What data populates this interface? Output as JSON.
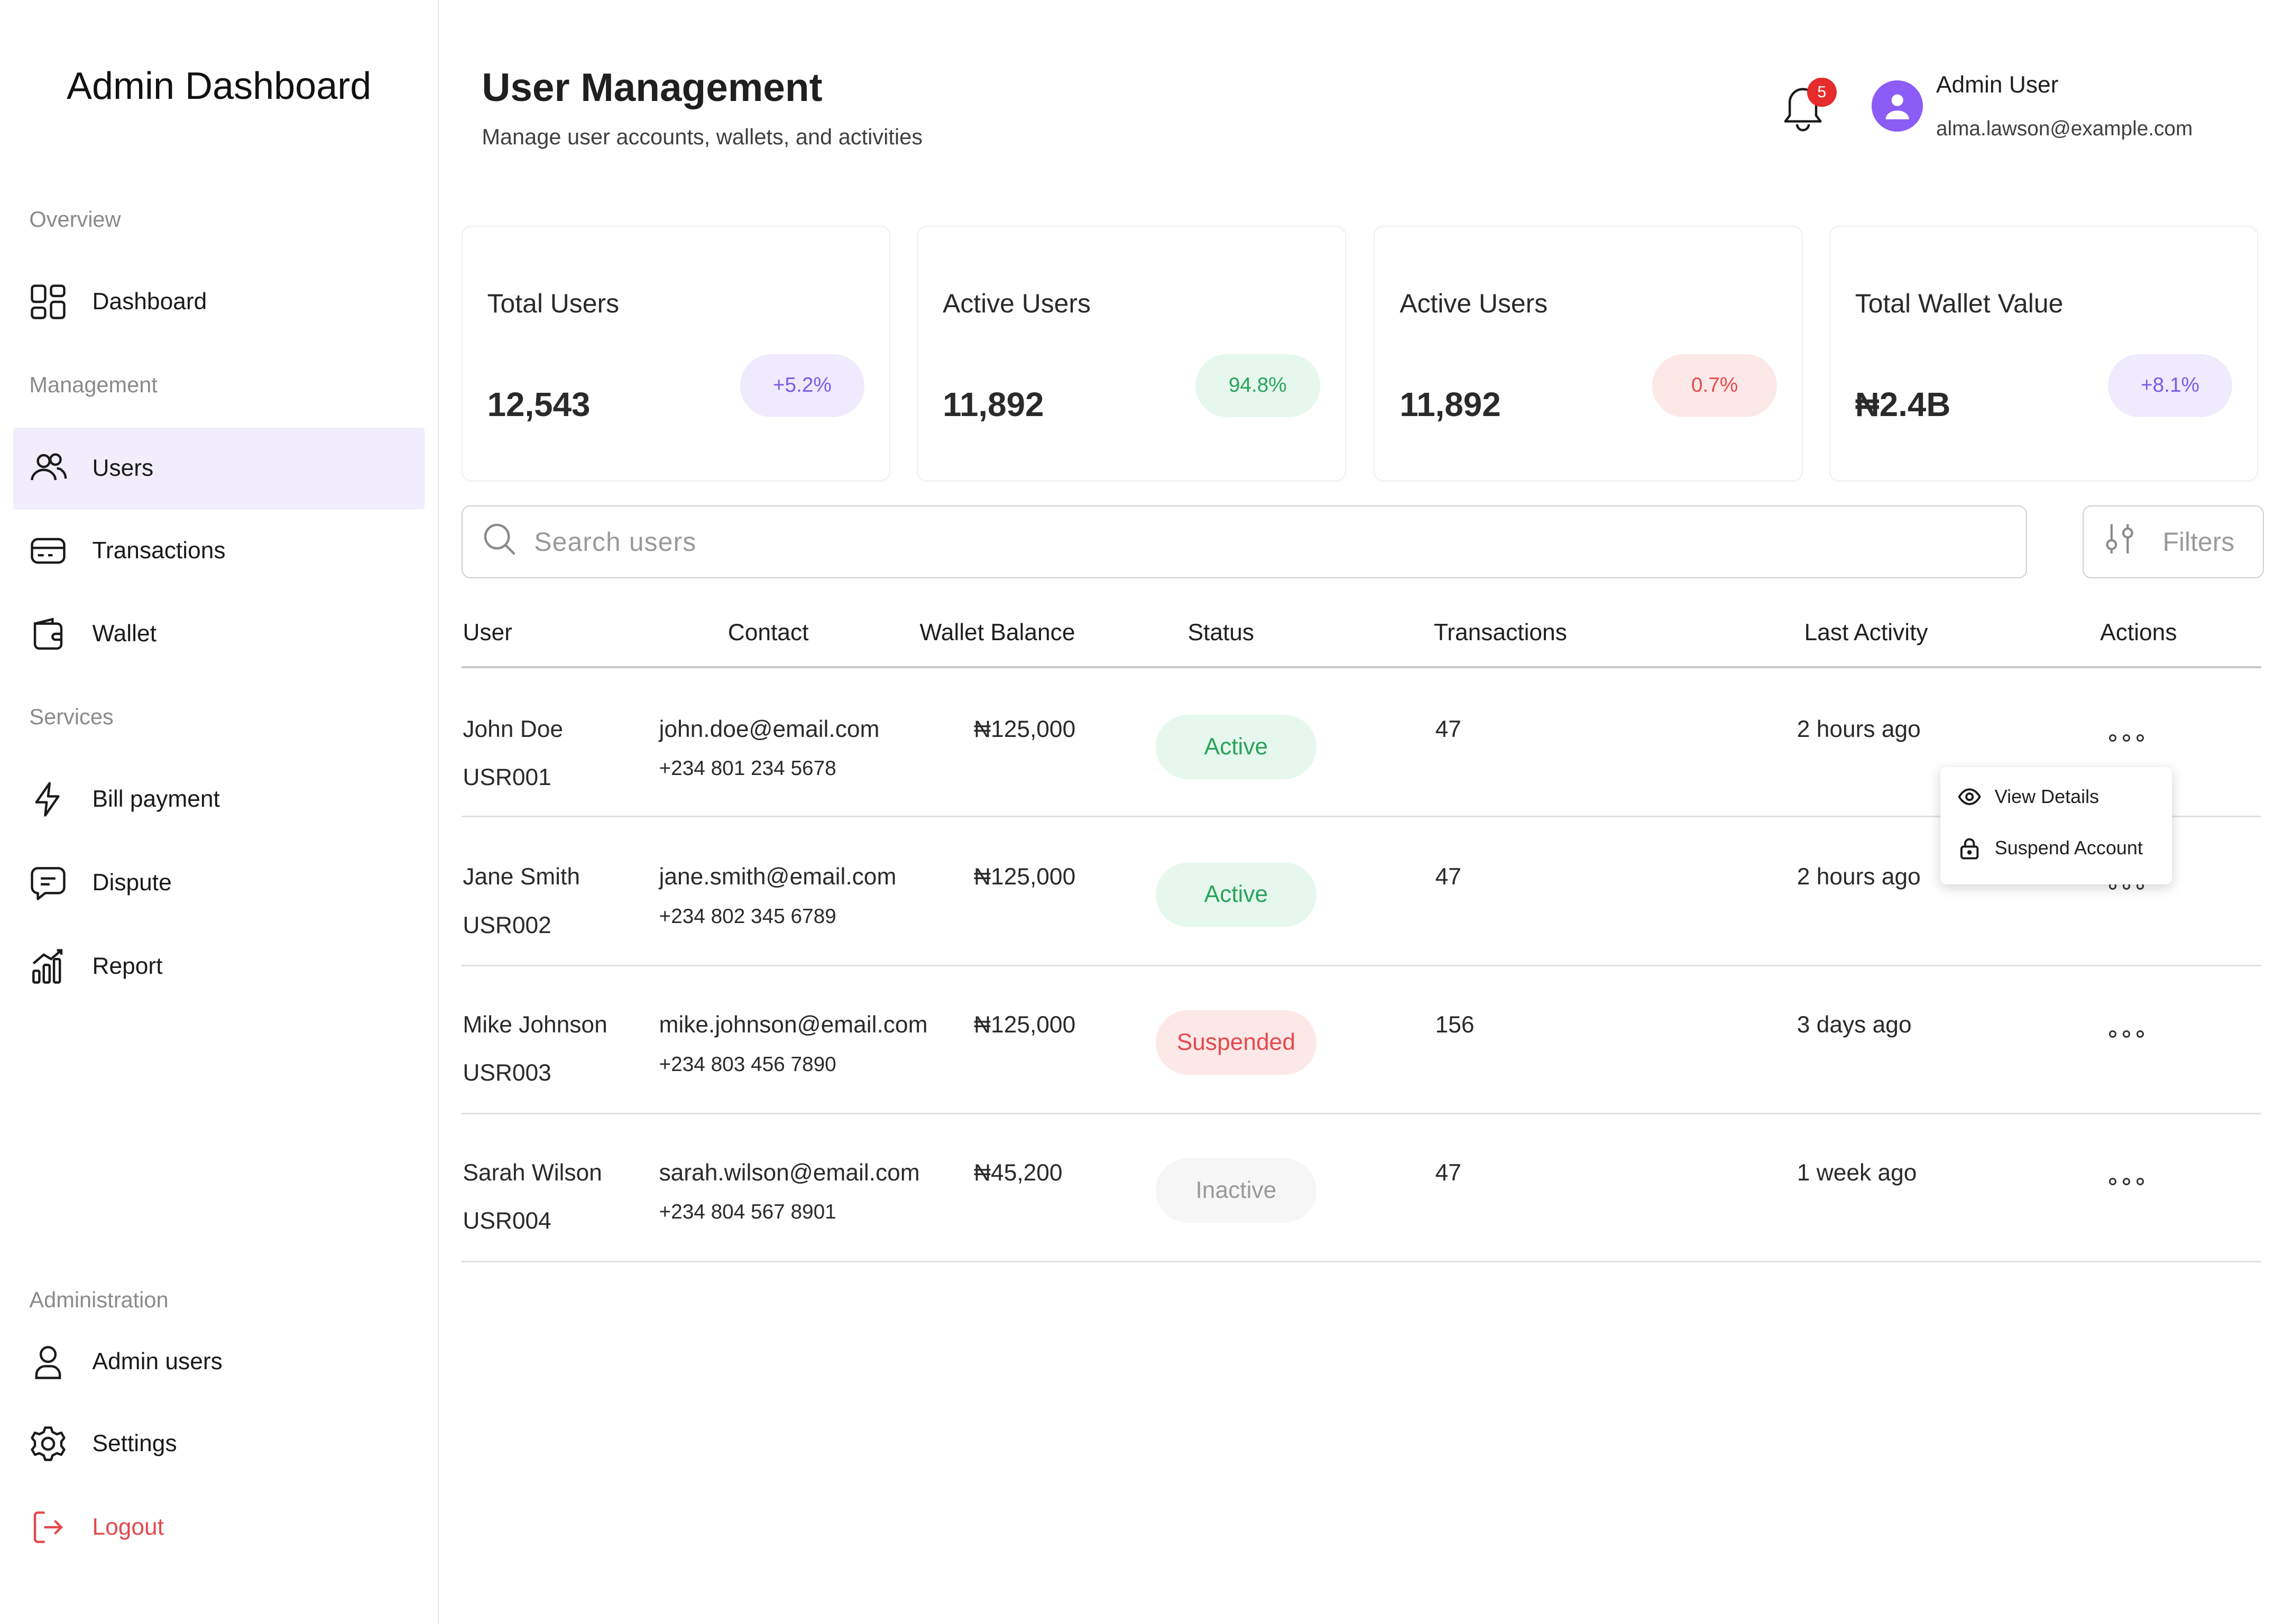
{
  "app": {
    "title": "Admin Dashboard"
  },
  "sidebar": {
    "sections": {
      "overview": "Overview",
      "management": "Management",
      "services": "Services",
      "administration": "Administration"
    },
    "items": [
      {
        "label": "Dashboard",
        "icon": "grid-icon"
      },
      {
        "label": "Users",
        "icon": "users-icon",
        "active": true
      },
      {
        "label": "Transactions",
        "icon": "card-icon"
      },
      {
        "label": "Wallet",
        "icon": "wallet-icon"
      },
      {
        "label": "Bill payment",
        "icon": "lightning-icon"
      },
      {
        "label": "Dispute",
        "icon": "chat-icon"
      },
      {
        "label": "Report",
        "icon": "chart-icon"
      },
      {
        "label": "Admin users",
        "icon": "person-icon"
      },
      {
        "label": "Settings",
        "icon": "gear-icon"
      },
      {
        "label": "Logout",
        "icon": "logout-icon"
      }
    ]
  },
  "header": {
    "title": "User Management",
    "subtitle": "Manage user accounts, wallets, and activities",
    "notifications": "5",
    "user": {
      "name": "Admin User",
      "email": "alma.lawson@example.com"
    }
  },
  "stats": [
    {
      "title": "Total Users",
      "value": "12,543",
      "change": "+5.2%"
    },
    {
      "title": "Active Users",
      "value": "11,892",
      "change": "94.8%"
    },
    {
      "title": "Active Users",
      "value": "11,892",
      "change": "0.7%"
    },
    {
      "title": "Total Wallet Value",
      "value": "₦2.4B",
      "change": "+8.1%"
    }
  ],
  "search": {
    "placeholder": "Search  users"
  },
  "filters": {
    "label": "Filters"
  },
  "table": {
    "columns": [
      "User",
      "Contact",
      "Wallet Balance",
      "Status",
      "Transactions",
      "Last Activity",
      "Actions"
    ],
    "rows": [
      {
        "name": "John Doe",
        "id": "USR001",
        "email": "john.doe@email.com",
        "phone": "+234 801 234 5678",
        "balance": "₦125,000",
        "status": "Active",
        "transactions": "47",
        "last_activity": "2 hours ago"
      },
      {
        "name": "Jane Smith",
        "id": "USR002",
        "email": "jane.smith@email.com",
        "phone": "+234 802 345 6789",
        "balance": "₦125,000",
        "status": "Active",
        "transactions": "47",
        "last_activity": "2 hours ago"
      },
      {
        "name": "Mike Johnson",
        "id": "USR003",
        "email": "mike.johnson@email.com",
        "phone": "+234 803 456 7890",
        "balance": "₦125,000",
        "status": "Suspended",
        "transactions": "156",
        "last_activity": "3 days ago"
      },
      {
        "name": "Sarah Wilson",
        "id": "USR004",
        "email": "sarah.wilson@email.com",
        "phone": "+234 804 567 8901",
        "balance": "₦45,200",
        "status": "Inactive",
        "transactions": "47",
        "last_activity": "1 week ago"
      }
    ]
  },
  "row_menu": {
    "view": "View Details",
    "suspend": "Suspend Account"
  },
  "colors": {
    "accent": "#8b5cf6",
    "active_nav_bg": "#f1edfd",
    "success": "#2aa35c",
    "danger": "#e5484d",
    "muted": "#9a9a9a"
  }
}
